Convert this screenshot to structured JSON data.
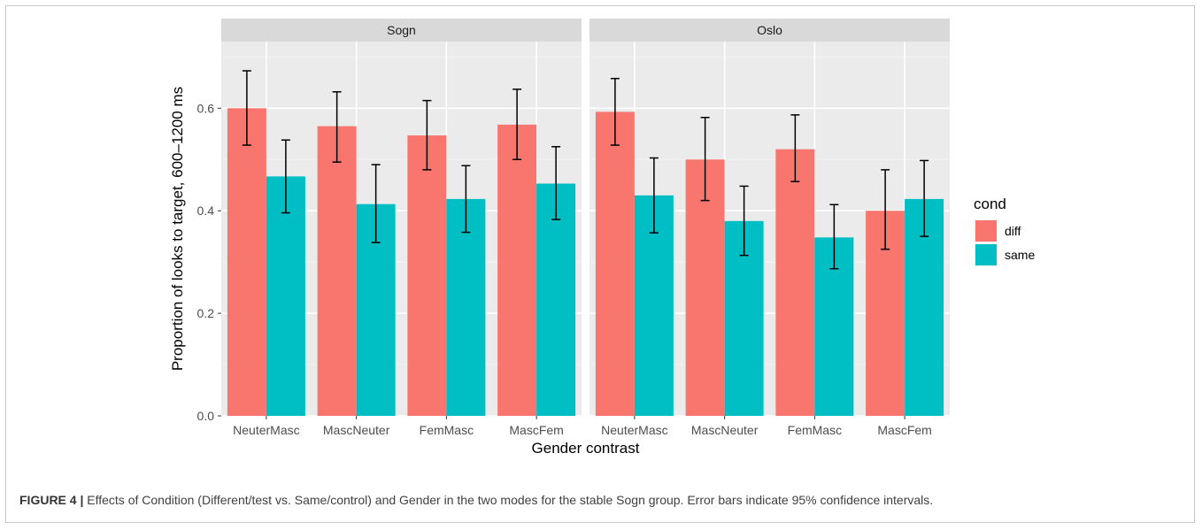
{
  "chart_data": {
    "type": "bar",
    "panels": [
      "Sogn",
      "Oslo"
    ],
    "categories": [
      "NeuterMasc",
      "MascNeuter",
      "FemMasc",
      "MascFem"
    ],
    "xlabel": "Gender contrast",
    "ylabel": "Proportion of looks to target, 600–1200 ms",
    "ylim": [
      0,
      0.73
    ],
    "yticks": [
      0.0,
      0.2,
      0.4,
      0.6
    ],
    "ytick_labels": [
      "0.0",
      "0.2",
      "0.4",
      "0.6"
    ],
    "grid": true,
    "legend": {
      "title": "cond",
      "position": "right"
    },
    "series": [
      {
        "name": "diff",
        "color": "#F8766D",
        "values": {
          "Sogn": [
            0.6,
            0.565,
            0.547,
            0.568
          ],
          "Oslo": [
            0.593,
            0.5,
            0.52,
            0.4
          ]
        },
        "err_low": {
          "Sogn": [
            0.528,
            0.495,
            0.48,
            0.5
          ],
          "Oslo": [
            0.528,
            0.42,
            0.457,
            0.325
          ]
        },
        "err_high": {
          "Sogn": [
            0.673,
            0.632,
            0.615,
            0.637
          ],
          "Oslo": [
            0.658,
            0.582,
            0.587,
            0.48
          ]
        }
      },
      {
        "name": "same",
        "color": "#00BFC4",
        "values": {
          "Sogn": [
            0.467,
            0.413,
            0.423,
            0.453
          ],
          "Oslo": [
            0.43,
            0.38,
            0.348,
            0.423
          ]
        },
        "err_low": {
          "Sogn": [
            0.396,
            0.338,
            0.358,
            0.383
          ],
          "Oslo": [
            0.357,
            0.313,
            0.287,
            0.35
          ]
        },
        "err_high": {
          "Sogn": [
            0.538,
            0.49,
            0.488,
            0.525
          ],
          "Oslo": [
            0.503,
            0.448,
            0.412,
            0.498
          ]
        }
      }
    ]
  },
  "caption": {
    "label": "FIGURE 4 |",
    "text": " Effects of Condition (Different/test vs. Same/control) and Gender in the two modes for the stable Sogn group. Error bars indicate 95% confidence intervals."
  }
}
